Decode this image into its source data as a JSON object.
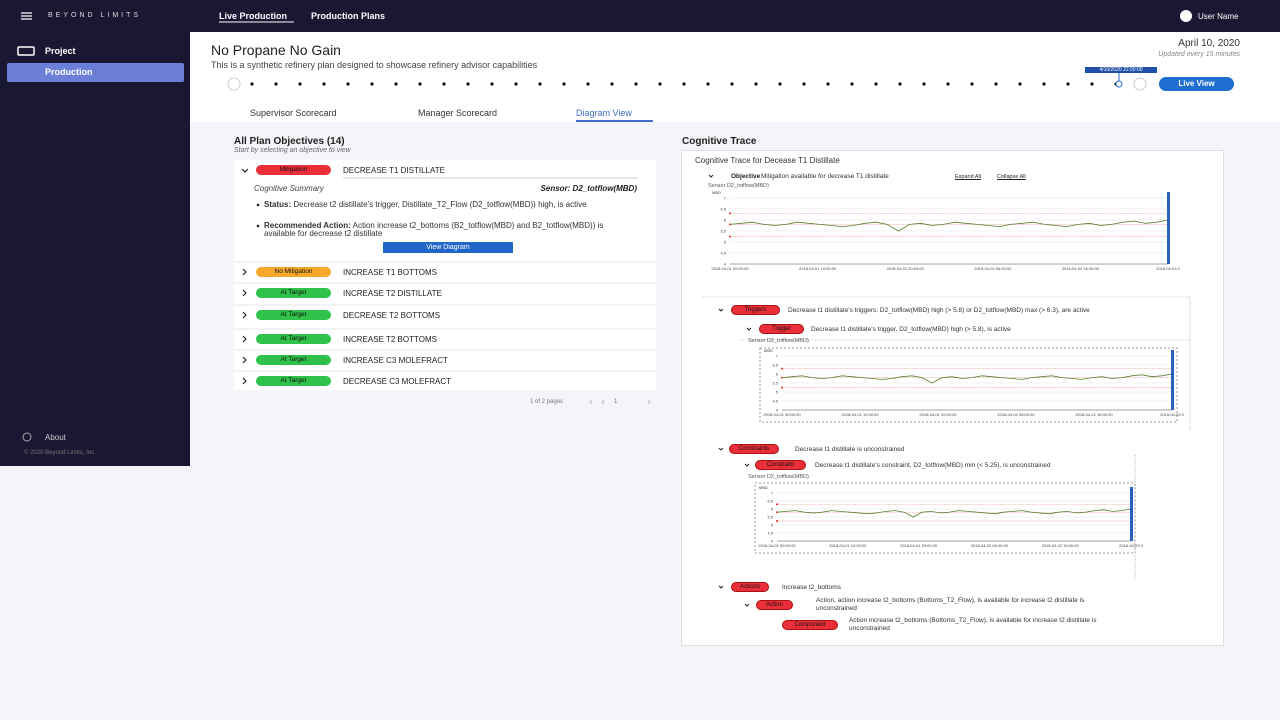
{
  "header": {
    "brand": "BEYOND LIMITS",
    "nav": [
      "Live Production",
      "Production Plans"
    ],
    "user": "User Name"
  },
  "sidebar": {
    "items": [
      "Project",
      "Production"
    ],
    "about": "About",
    "copyright": "© 2020 Beyond Limits, Inc."
  },
  "plan": {
    "title": "No Propane No Gain",
    "subtitle": "This is a synthetic refinery plan designed to showcase refinery advisor capabilities",
    "date": "April 10, 2020",
    "updated": "Updated every 15 minutes",
    "timestamp": "4/10/2020 22:00:00",
    "live_view": "Live View"
  },
  "tabs": [
    "Supervisor Scorecard",
    "Manager Scorecard",
    "Diagram View"
  ],
  "objectives": {
    "title": "All Plan Objectives (14)",
    "hint": "Start by selecting an objective to view",
    "items": [
      {
        "status": "Mitigation",
        "name": "DECREASE T1 DISTILLATE"
      },
      {
        "status": "No Mitigation",
        "name": "INCREASE T1 BOTTOMS"
      },
      {
        "status": "At Target",
        "name": "INCREASE T2 DISTILLATE"
      },
      {
        "status": "At Target",
        "name": "DECREASE T2 BOTTOMS"
      },
      {
        "status": "At Target",
        "name": "INCREASE T2 BOTTOMS"
      },
      {
        "status": "At Target",
        "name": "INCREASE C3 MOLEFRACT"
      },
      {
        "status": "At Target",
        "name": "DECREASE C3 MOLEFRACT"
      }
    ],
    "summary": {
      "title": "Cognitive Summary",
      "sensor": "Sensor: D2_totflow(MBD)",
      "status_label": "Status:",
      "status_text": "Decrease t2 distillate's trigger, Distillate_T2_Flow (D2_totflow(MBD)) high, is active",
      "action_label": "Recommended Action:",
      "action_text": "Action increase t2_bottoms (B2_totflow(MBD) and B2_totflow(MBD)) is available for decrease t2 distillate",
      "button": "View Diagram"
    },
    "pagination": "1 of 2 pages",
    "page": "1"
  },
  "trace": {
    "title": "Cognitive Trace",
    "subtitle": "Cognitive Trace for Decease T1 Distillate",
    "objective_label": "Objective",
    "objective_text": "Mitigation available for decrease T1 distillate",
    "expand": "Expand All",
    "collapse": "Collapse All",
    "sensor": "Sensor D2_totflow(MBD)",
    "nodes": [
      {
        "label": "Triggers",
        "text": "Decrease t1 distillate's triggers: D2_totflow(MBD) high (> 5.8) or D2_totflow(MBD) max (> 6.3), are active"
      },
      {
        "label": "Trigger",
        "text": "Decrease t1 distillate's trigger, D2_totflow(MBD) high (> 5.8), is active"
      },
      {
        "label": "Constraints",
        "text": "Decrease t1 distillate is unconstrained"
      },
      {
        "label": "Constraint",
        "text": "Decrease t1 distillate's constraint, D2_totflow(MBD) min (< 5.25), is unconstrained"
      },
      {
        "label": "Actions",
        "text": "Increase t2_bottoms"
      },
      {
        "label": "Action",
        "text": "Action, action increase t2_bottoms (Bottoms_T2_Flow), is available for increase t2 distillate is unconstrained"
      },
      {
        "label": "Component",
        "text": "Action increase t2_bottoms (Bottoms_T2_Flow), is available for increase t2 distillate is unconstrained"
      }
    ],
    "chart": {
      "type": "line",
      "ylabel": "MBD",
      "ylim": [
        4,
        7
      ],
      "yticks": [
        4,
        4.5,
        5,
        5.5,
        6,
        6.5,
        7
      ],
      "categories": [
        "2018-04-01 00:00:00",
        "2018-04-01 10:00:00",
        "2018-04-01 20:00:00",
        "2018-04-02 06:00:00",
        "2018-04-02 16:00:00",
        "2018-04-03 0"
      ],
      "thresholds": [
        6.3,
        5.8,
        5.25
      ],
      "color": "#5a7d2a",
      "values": [
        5.8,
        5.85,
        5.9,
        5.8,
        5.75,
        5.8,
        5.9,
        5.85,
        5.8,
        5.75,
        5.7,
        5.75,
        5.85,
        5.9,
        5.8,
        5.5,
        5.8,
        5.85,
        5.75,
        5.8,
        5.9,
        5.85,
        5.8,
        5.75,
        5.7,
        5.8,
        5.85,
        5.9,
        5.8,
        5.75,
        5.7,
        5.8,
        5.85,
        5.75,
        5.8,
        5.9,
        5.95,
        5.85,
        5.9,
        6.0
      ]
    }
  }
}
